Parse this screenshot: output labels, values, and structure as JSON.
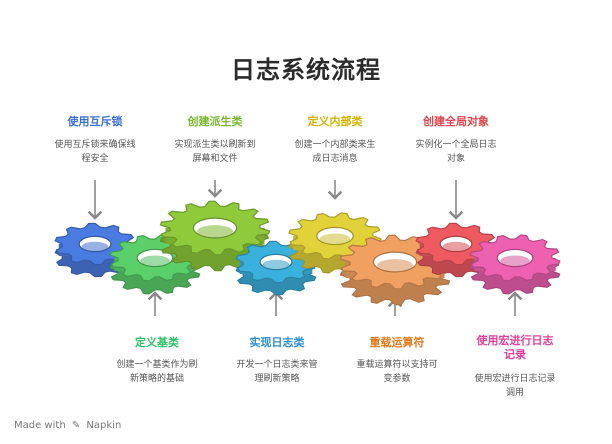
{
  "title": "日志系统流程",
  "top_steps": [
    {
      "heading": "使用互斥锁",
      "desc1": "使用互斥锁来确保线",
      "desc2": "程安全",
      "color": "#3b6fd6"
    },
    {
      "heading": "创建派生类",
      "desc1": "实现派生类以刷新到",
      "desc2": "屏幕和文件",
      "color": "#79b830"
    },
    {
      "heading": "定义内部类",
      "desc1": "创建一个内部类来生",
      "desc2": "成日志消息",
      "color": "#d4b200"
    },
    {
      "heading": "创建全局对象",
      "desc1": "实例化一个全局日志",
      "desc2": "对象",
      "color": "#e0454c"
    }
  ],
  "bottom_steps": [
    {
      "heading": "定义基类",
      "desc1": "创建一个基类作为刷",
      "desc2": "新策略的基础",
      "color": "#2fbf6a"
    },
    {
      "heading": "实现日志类",
      "desc1": "开发一个日志类来管",
      "desc2": "理刷新策略",
      "color": "#2b8fd0"
    },
    {
      "heading": "重载运算符",
      "desc1": "重载运算符以支持可",
      "desc2": "变参数",
      "color": "#e07a1a"
    },
    {
      "heading": "使用宏进行日志",
      "heading2": "记录",
      "desc1": "使用宏进行日志记录",
      "desc2": "调用",
      "color": "#e0409a"
    }
  ],
  "gear_colors": [
    "#4a7be0",
    "#5bd06a",
    "#8fca3a",
    "#3ab0dd",
    "#e2d23a",
    "#f0a060",
    "#ee5a60",
    "#ee60b0"
  ],
  "footer": {
    "made_with": "Made with",
    "brand": "Napkin"
  }
}
